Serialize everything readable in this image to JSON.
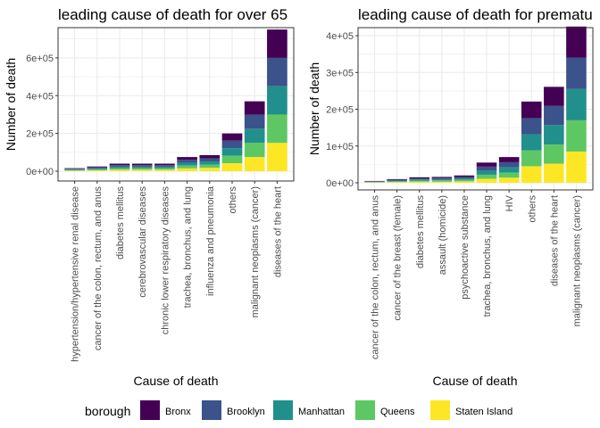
{
  "chart_data": [
    {
      "type": "bar",
      "stacked": true,
      "title": "leading cause of death for over 65",
      "xlabel": "Cause of death",
      "ylabel": "Number of death",
      "ylim": [
        0,
        760000
      ],
      "yticks": [
        0,
        200000,
        400000,
        600000
      ],
      "ytick_labels": [
        "0e+00",
        "2e+05",
        "4e+05",
        "6e+05"
      ],
      "grid": true,
      "categories": [
        "hypertension/hypertensive renal disease",
        "cancer of the colon, rectum, and anus",
        "diabetes mellitus",
        "cerebrovascular diseases",
        "chronic lower respiratory diseases",
        "trachea, bronchus, and lung",
        "influenza and pneumonia",
        "others",
        "malignant neoplasms (cancer)",
        "diseases of the heart"
      ],
      "series": [
        {
          "name": "Staten Island",
          "values": [
            3000,
            5000,
            8000,
            8000,
            8000,
            15000,
            18000,
            42000,
            75000,
            150000
          ]
        },
        {
          "name": "Queens",
          "values": [
            3500,
            5000,
            8000,
            8000,
            8000,
            15000,
            17000,
            40000,
            75000,
            150000
          ]
        },
        {
          "name": "Manhattan",
          "values": [
            3500,
            5000,
            8000,
            8000,
            8000,
            15000,
            17000,
            40000,
            75000,
            150000
          ]
        },
        {
          "name": "Brooklyn",
          "values": [
            3000,
            5000,
            8000,
            8000,
            8000,
            15000,
            16000,
            40000,
            75000,
            150000
          ]
        },
        {
          "name": "Bronx",
          "values": [
            3000,
            5000,
            8000,
            8000,
            8000,
            15000,
            17000,
            38000,
            70000,
            150000
          ]
        }
      ]
    },
    {
      "type": "bar",
      "stacked": true,
      "title": "leading cause of death for prematu",
      "xlabel": "Cause of death",
      "ylabel": "Number of death",
      "ylim": [
        0,
        422000
      ],
      "yticks": [
        0,
        100000,
        200000,
        300000,
        400000
      ],
      "ytick_labels": [
        "0e+00",
        "1e+05",
        "2e+05",
        "3e+05",
        "4e+05"
      ],
      "grid": true,
      "categories": [
        "cancer of the colon, rectum, and anus",
        "cancer of the breast (female)",
        "diabetes mellitus",
        "assault (homicide)",
        "psychoactive substance",
        "trachea, bronchus, and lung",
        "HIV",
        "others",
        "diseases of the heart",
        "malignant neoplasms (cancer)"
      ],
      "series": [
        {
          "name": "Staten Island",
          "values": [
            1000,
            2000,
            3000,
            3000,
            4000,
            11000,
            14000,
            45000,
            52000,
            85000
          ]
        },
        {
          "name": "Queens",
          "values": [
            1000,
            2000,
            3000,
            3500,
            4000,
            11000,
            14000,
            43000,
            52000,
            85000
          ]
        },
        {
          "name": "Manhattan",
          "values": [
            1000,
            2000,
            3000,
            3500,
            4000,
            11000,
            14000,
            44000,
            53000,
            85000
          ]
        },
        {
          "name": "Brooklyn",
          "values": [
            1000,
            2000,
            3000,
            3000,
            4000,
            11000,
            14000,
            44000,
            52000,
            85000
          ]
        },
        {
          "name": "Bronx",
          "values": [
            1000,
            2000,
            3000,
            3000,
            4000,
            11000,
            14000,
            45000,
            52000,
            85000
          ]
        }
      ]
    }
  ],
  "legend": {
    "title": "borough",
    "position": "bottom",
    "items": [
      {
        "label": "Bronx",
        "color": "#440154"
      },
      {
        "label": "Brooklyn",
        "color": "#3B528B"
      },
      {
        "label": "Manhattan",
        "color": "#21908C"
      },
      {
        "label": "Queens",
        "color": "#5DC863"
      },
      {
        "label": "Staten Island",
        "color": "#FDE725"
      }
    ]
  }
}
